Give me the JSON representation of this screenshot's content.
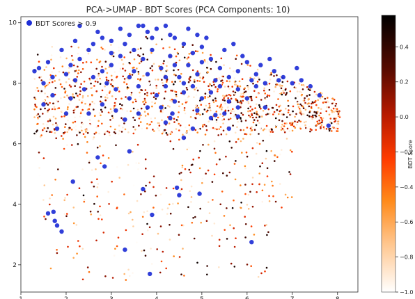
{
  "chart_data": {
    "type": "scatter",
    "title": "PCA->UMAP - BDT Scores (PCA Components: 10)",
    "xlabel": "",
    "ylabel": "",
    "xlim": [
      1,
      8.45
    ],
    "ylim": [
      1.1,
      10.2
    ],
    "x_ticks": [
      1,
      2,
      3,
      4,
      5,
      6,
      7,
      8
    ],
    "y_ticks": [
      2,
      4,
      6,
      8,
      10
    ],
    "grid": false,
    "legend": {
      "position": "top-left",
      "entries": [
        "BDT Scores > 0.9"
      ]
    },
    "colorbar": {
      "label": "BDT Score",
      "range": [
        -1.0,
        0.58
      ],
      "ticks": [
        0.4,
        0.2,
        0.0,
        -0.2,
        -0.4,
        -0.6,
        -0.8,
        -1.0
      ],
      "tick_labels": [
        "0.4",
        "0.2",
        "0.0",
        "−0.2",
        "−0.4",
        "−0.6",
        "−0.8",
        "−1.0"
      ],
      "colormap": "gist_heat_r"
    },
    "series": [
      {
        "name": "BDT Scores > 0.9",
        "color": "#1f2fd6",
        "points": [
          [
            1.6,
            3.7
          ],
          [
            1.72,
            3.75
          ],
          [
            1.75,
            3.45
          ],
          [
            1.8,
            3.3
          ],
          [
            1.9,
            3.1
          ],
          [
            2.15,
            4.75
          ],
          [
            2.7,
            5.55
          ],
          [
            2.85,
            5.25
          ],
          [
            3.3,
            2.5
          ],
          [
            3.7,
            4.5
          ],
          [
            3.9,
            3.65
          ],
          [
            3.85,
            1.7
          ],
          [
            4.45,
            4.55
          ],
          [
            4.5,
            4.3
          ],
          [
            4.95,
            4.35
          ],
          [
            6.1,
            2.75
          ],
          [
            4.3,
            6.85
          ],
          [
            4.35,
            7.0
          ],
          [
            4.6,
            6.2
          ],
          [
            5.2,
            6.85
          ],
          [
            5.6,
            6.5
          ],
          [
            5.3,
            6.95
          ],
          [
            5.8,
            6.9
          ],
          [
            3.3,
            6.8
          ],
          [
            3.4,
            5.75
          ],
          [
            4.8,
            6.5
          ],
          [
            4.2,
            6.7
          ],
          [
            1.4,
            8.5
          ],
          [
            1.6,
            8.7
          ],
          [
            1.3,
            8.4
          ],
          [
            1.5,
            8.0
          ],
          [
            1.7,
            7.6
          ],
          [
            1.8,
            6.5
          ],
          [
            2.1,
            7.5
          ],
          [
            2.0,
            8.3
          ],
          [
            2.3,
            8.8
          ],
          [
            2.5,
            9.1
          ],
          [
            2.8,
            9.5
          ],
          [
            3.0,
            9.4
          ],
          [
            3.2,
            9.8
          ],
          [
            3.4,
            9.6
          ],
          [
            3.6,
            9.9
          ],
          [
            3.8,
            9.7
          ],
          [
            4.0,
            9.8
          ],
          [
            4.2,
            9.9
          ],
          [
            4.4,
            9.5
          ],
          [
            4.6,
            9.3
          ],
          [
            4.8,
            9.0
          ],
          [
            5.0,
            9.2
          ],
          [
            5.2,
            8.8
          ],
          [
            5.4,
            8.5
          ],
          [
            5.6,
            8.2
          ],
          [
            5.8,
            8.4
          ],
          [
            6.0,
            8.7
          ],
          [
            6.2,
            8.3
          ],
          [
            6.4,
            8.0
          ],
          [
            6.6,
            8.4
          ],
          [
            6.8,
            8.2
          ],
          [
            7.0,
            8.0
          ],
          [
            7.2,
            8.1
          ],
          [
            7.4,
            7.9
          ],
          [
            7.6,
            7.6
          ],
          [
            7.8,
            6.6
          ],
          [
            3.0,
            8.6
          ],
          [
            3.2,
            8.9
          ],
          [
            3.5,
            8.4
          ],
          [
            3.7,
            8.8
          ],
          [
            3.9,
            9.1
          ],
          [
            4.1,
            8.5
          ],
          [
            4.3,
            8.9
          ],
          [
            4.5,
            8.2
          ],
          [
            4.7,
            8.6
          ],
          [
            4.9,
            8.3
          ],
          [
            2.6,
            8.2
          ],
          [
            2.4,
            7.8
          ],
          [
            2.8,
            7.3
          ],
          [
            3.1,
            7.8
          ],
          [
            3.4,
            7.5
          ],
          [
            3.6,
            7.9
          ],
          [
            3.8,
            7.2
          ],
          [
            4.0,
            7.6
          ],
          [
            4.2,
            7.9
          ],
          [
            4.4,
            7.4
          ],
          [
            4.6,
            7.7
          ],
          [
            4.8,
            7.9
          ],
          [
            5.0,
            7.5
          ],
          [
            5.2,
            7.7
          ],
          [
            5.4,
            7.9
          ],
          [
            5.6,
            7.4
          ],
          [
            5.8,
            7.8
          ],
          [
            6.0,
            7.5
          ],
          [
            6.2,
            7.9
          ],
          [
            6.4,
            7.2
          ],
          [
            2.2,
            9.4
          ],
          [
            2.7,
            9.7
          ],
          [
            3.3,
            9.3
          ],
          [
            3.5,
            9.1
          ],
          [
            3.9,
            9.5
          ],
          [
            4.3,
            9.6
          ],
          [
            4.7,
            9.8
          ],
          [
            5.1,
            9.5
          ],
          [
            5.5,
            9.1
          ],
          [
            5.9,
            8.9
          ],
          [
            6.3,
            8.6
          ],
          [
            6.7,
            8.1
          ],
          [
            1.9,
            9.1
          ],
          [
            2.1,
            8.6
          ],
          [
            2.9,
            8.0
          ],
          [
            3.6,
            7.0
          ],
          [
            4.1,
            7.2
          ],
          [
            4.9,
            7.1
          ],
          [
            5.5,
            7.0
          ],
          [
            3.1,
            7.1
          ],
          [
            2.5,
            7.0
          ],
          [
            2.0,
            7.0
          ],
          [
            1.5,
            7.3
          ],
          [
            2.3,
            9.9
          ],
          [
            3.7,
            9.9
          ],
          [
            4.9,
            9.6
          ],
          [
            5.7,
            9.3
          ],
          [
            6.5,
            8.8
          ],
          [
            7.1,
            8.5
          ],
          [
            2.6,
            9.3
          ],
          [
            3.0,
            9.0
          ],
          [
            4.4,
            8.6
          ],
          [
            5.3,
            8.1
          ],
          [
            6.1,
            8.1
          ],
          [
            3.8,
            8.3
          ],
          [
            4.6,
            8.0
          ],
          [
            2.8,
            8.4
          ],
          [
            2.2,
            8.1
          ],
          [
            1.7,
            8.2
          ],
          [
            3.4,
            8.2
          ],
          [
            4.2,
            8.2
          ],
          [
            5.0,
            8.7
          ],
          [
            5.8,
            7.2
          ]
        ]
      }
    ]
  }
}
